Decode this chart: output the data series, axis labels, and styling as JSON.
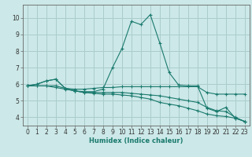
{
  "xlabel": "Humidex (Indice chaleur)",
  "ylabel": "",
  "background_color": "#cce8e8",
  "grid_color": "#aacccc",
  "line_color": "#1a7a6e",
  "spine_color": "#666666",
  "xlim": [
    -0.5,
    23.5
  ],
  "ylim": [
    3.5,
    10.8
  ],
  "xticks": [
    0,
    1,
    2,
    3,
    4,
    5,
    6,
    7,
    8,
    9,
    10,
    11,
    12,
    13,
    14,
    15,
    16,
    17,
    18,
    19,
    20,
    21,
    22,
    23
  ],
  "yticks": [
    4,
    5,
    6,
    7,
    8,
    9,
    10
  ],
  "line1_x": [
    0,
    1,
    2,
    3,
    4,
    5,
    6,
    7,
    8,
    9,
    10,
    11,
    12,
    13,
    14,
    15,
    16,
    17,
    18,
    19,
    20,
    21,
    22,
    23
  ],
  "line1_y": [
    5.9,
    6.0,
    6.2,
    6.3,
    5.75,
    5.7,
    5.7,
    5.75,
    5.8,
    5.8,
    5.85,
    5.85,
    5.85,
    5.85,
    5.85,
    5.85,
    5.85,
    5.85,
    5.85,
    5.5,
    5.4,
    5.4,
    5.4,
    5.4
  ],
  "line2_x": [
    0,
    1,
    2,
    3,
    4,
    5,
    6,
    7,
    8,
    9,
    10,
    11,
    12,
    13,
    14,
    15,
    16,
    17,
    18,
    19,
    20,
    21,
    22,
    23
  ],
  "line2_y": [
    5.9,
    6.0,
    6.2,
    6.3,
    5.75,
    5.6,
    5.55,
    5.55,
    5.7,
    7.0,
    8.15,
    9.8,
    9.6,
    10.2,
    8.5,
    6.7,
    5.95,
    5.9,
    5.9,
    4.55,
    4.35,
    4.6,
    3.95,
    3.75
  ],
  "line3_x": [
    0,
    1,
    2,
    3,
    4,
    5,
    6,
    7,
    8,
    9,
    10,
    11,
    12,
    13,
    14,
    15,
    16,
    17,
    18,
    19,
    20,
    21,
    22,
    23
  ],
  "line3_y": [
    5.9,
    5.9,
    5.9,
    5.9,
    5.75,
    5.6,
    5.5,
    5.5,
    5.5,
    5.5,
    5.5,
    5.45,
    5.4,
    5.35,
    5.3,
    5.2,
    5.1,
    5.0,
    4.9,
    4.6,
    4.4,
    4.35,
    4.0,
    3.75
  ],
  "line4_x": [
    0,
    1,
    2,
    3,
    4,
    5,
    6,
    7,
    8,
    9,
    10,
    11,
    12,
    13,
    14,
    15,
    16,
    17,
    18,
    19,
    20,
    21,
    22,
    23
  ],
  "line4_y": [
    5.9,
    5.9,
    5.9,
    5.8,
    5.7,
    5.6,
    5.5,
    5.45,
    5.4,
    5.4,
    5.35,
    5.3,
    5.2,
    5.1,
    4.9,
    4.8,
    4.7,
    4.55,
    4.4,
    4.2,
    4.1,
    4.05,
    3.95,
    3.75
  ],
  "tick_fontsize": 5.5,
  "xlabel_fontsize": 6.0
}
